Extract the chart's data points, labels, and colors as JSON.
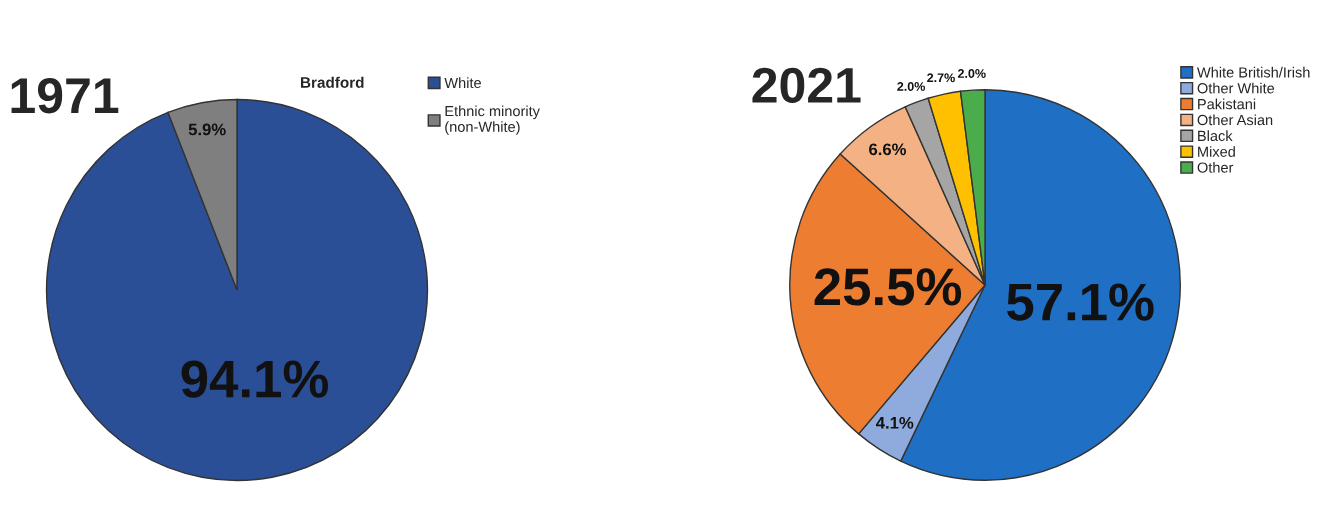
{
  "chart_data": [
    {
      "type": "pie",
      "title": "1971",
      "subtitle": "Bradford",
      "categories": [
        "White",
        "Ethnic minority\n(non-White)"
      ],
      "values": [
        94.1,
        5.9
      ],
      "colors": [
        "#2b4f96",
        "#7f7f7f"
      ],
      "value_labels": [
        "94.1%",
        "5.9%"
      ],
      "legend": "top right"
    },
    {
      "type": "pie",
      "title": "2021",
      "categories": [
        "White British/Irish",
        "Other White",
        "Pakistani",
        "Other Asian",
        "Black",
        "Mixed",
        "Other"
      ],
      "values": [
        57.1,
        4.1,
        25.5,
        6.6,
        2.0,
        2.7,
        2.0
      ],
      "colors": [
        "#1f6fc4",
        "#8faadc",
        "#ed7d31",
        "#f4b183",
        "#a5a5a5",
        "#ffc000",
        "#4aac4a"
      ],
      "value_labels": [
        "57.1%",
        "4.1%",
        "25.5%",
        "6.6%",
        "2.0%",
        "2.7%",
        "2.0%"
      ],
      "legend": "top right"
    }
  ]
}
